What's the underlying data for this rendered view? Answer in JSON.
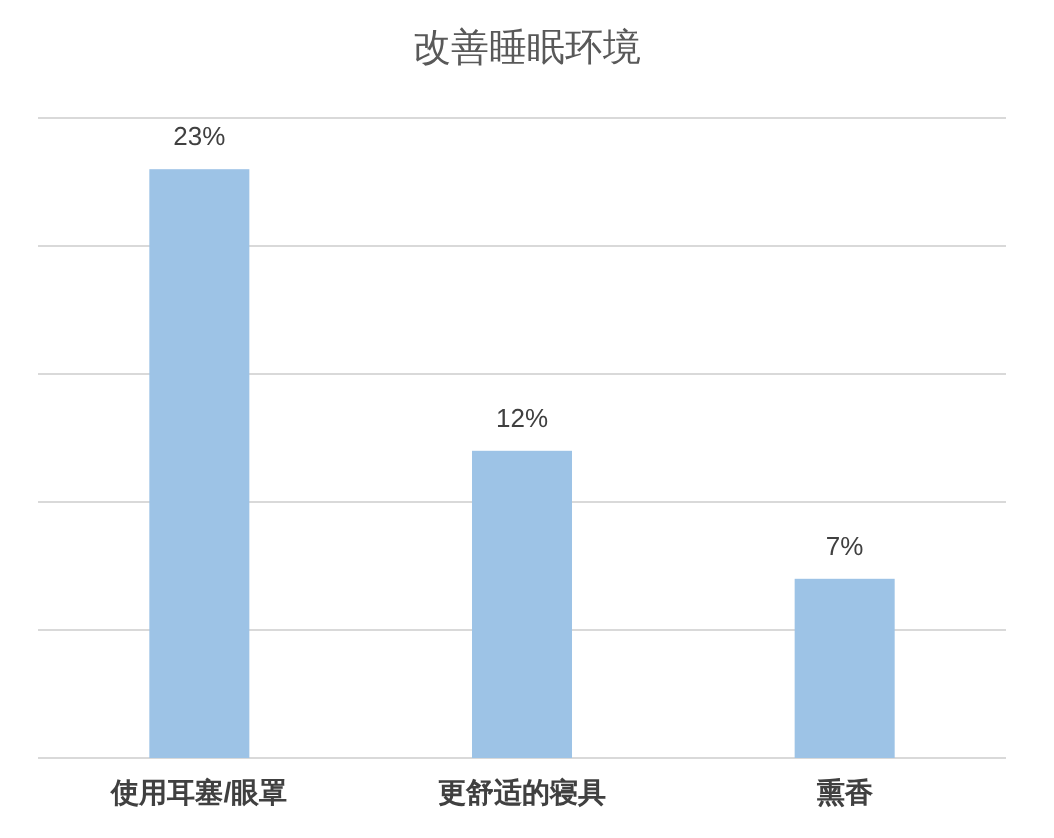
{
  "chart_data": {
    "type": "bar",
    "title": "改善睡眠环境",
    "categories": [
      "使用耳塞/眼罩",
      "更舒适的寝具",
      "熏香"
    ],
    "values": [
      23,
      12,
      7
    ],
    "value_labels": [
      "23%",
      "12%",
      "7%"
    ],
    "color": "#9dc3e6",
    "ylim": [
      0,
      25
    ],
    "yticks": [
      {
        "value": 0,
        "label": null
      },
      {
        "value": 5,
        "label": null
      },
      {
        "value": 10,
        "label": null
      },
      {
        "value": 15,
        "label": null
      },
      {
        "value": 20,
        "label": null
      },
      {
        "value": 25,
        "label": null
      }
    ],
    "grid": "y",
    "tick_labels": "x"
  }
}
